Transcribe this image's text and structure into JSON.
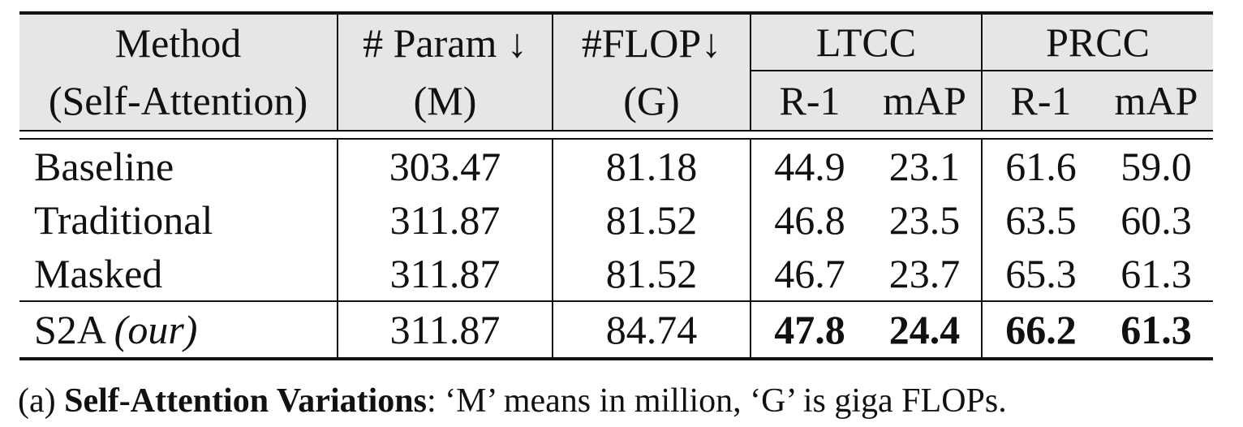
{
  "table": {
    "header": {
      "method": "Method",
      "method_sub": "(Self-Attention)",
      "param": "# Param ↓",
      "param_unit": "(M)",
      "flop": "#FLOP↓",
      "flop_unit": "(G)",
      "ltcc": "LTCC",
      "prcc": "PRCC",
      "r1": "R-1",
      "map": "mAP"
    },
    "rows": [
      {
        "method": "Baseline",
        "param": "303.47",
        "flop": "81.18",
        "ltcc_r1": "44.9",
        "ltcc_map": "23.1",
        "prcc_r1": "61.6",
        "prcc_map": "59.0"
      },
      {
        "method": "Traditional",
        "param": "311.87",
        "flop": "81.52",
        "ltcc_r1": "46.8",
        "ltcc_map": "23.5",
        "prcc_r1": "63.5",
        "prcc_map": "60.3"
      },
      {
        "method": "Masked",
        "param": "311.87",
        "flop": "81.52",
        "ltcc_r1": "46.7",
        "ltcc_map": "23.7",
        "prcc_r1": "65.3",
        "prcc_map": "61.3"
      },
      {
        "method": "S2A",
        "method_note": "(our)",
        "param": "311.87",
        "flop": "84.74",
        "ltcc_r1": "47.8",
        "ltcc_map": "24.4",
        "prcc_r1": "66.2",
        "prcc_map": "61.3"
      }
    ]
  },
  "caption": {
    "prefix": "(a)",
    "bold": "Self-Attention Variations",
    "rest": ": ‘M’ means in million, ‘G’ is giga FLOPs."
  }
}
